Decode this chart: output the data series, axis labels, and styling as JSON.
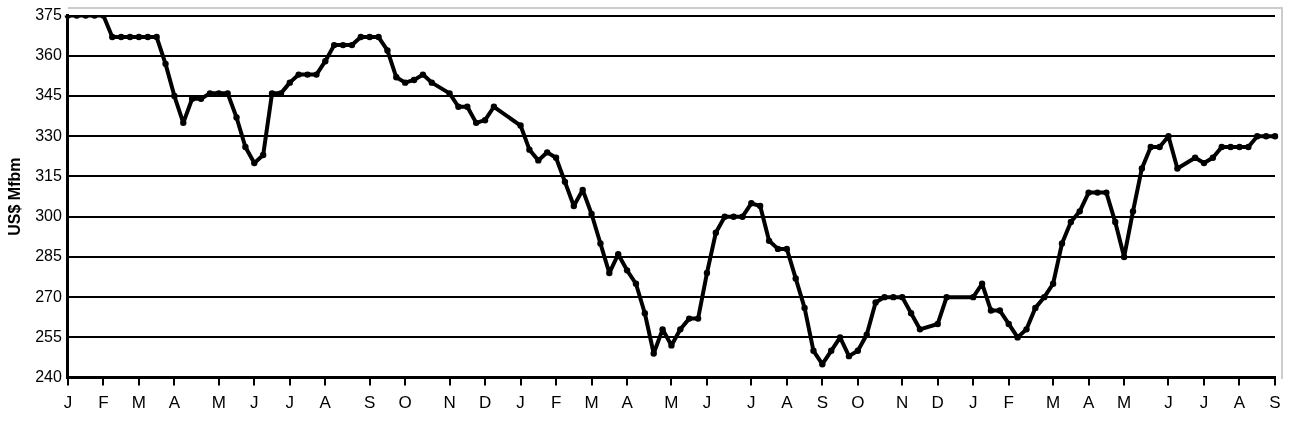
{
  "chart_data": {
    "type": "line",
    "ylabel": "US$ Mfbm",
    "color": "#000000",
    "marker": "circle",
    "line_style": "solid",
    "grid": "y",
    "legend": false,
    "categories": [
      "J",
      null,
      null,
      null,
      "F",
      null,
      null,
      null,
      "M",
      null,
      null,
      null,
      "A",
      null,
      null,
      null,
      null,
      "M",
      null,
      null,
      null,
      "J",
      null,
      null,
      null,
      "J",
      null,
      null,
      null,
      "A",
      null,
      null,
      null,
      null,
      "S",
      null,
      null,
      null,
      "O",
      null,
      null,
      null,
      null,
      "N",
      null,
      null,
      null,
      "D",
      null,
      null,
      null,
      "J",
      null,
      null,
      null,
      "F",
      null,
      null,
      null,
      "M",
      null,
      null,
      null,
      "A",
      null,
      null,
      null,
      null,
      "M",
      null,
      null,
      null,
      "J",
      null,
      null,
      null,
      null,
      "J",
      null,
      null,
      null,
      "A",
      null,
      null,
      null,
      "S",
      null,
      null,
      null,
      "O",
      null,
      null,
      null,
      null,
      "N",
      null,
      null,
      null,
      "D",
      null,
      null,
      null,
      "J",
      null,
      null,
      null,
      "F",
      null,
      null,
      null,
      null,
      "M",
      null,
      null,
      null,
      "A",
      null,
      null,
      null,
      "M",
      null,
      null,
      null,
      null,
      "J",
      null,
      null,
      null,
      "J",
      null,
      null,
      null,
      "A",
      null,
      null,
      null,
      "S"
    ],
    "values": [
      375,
      375,
      375,
      375,
      375,
      367,
      367,
      367,
      367,
      367,
      367,
      357,
      345,
      335,
      344,
      344,
      346,
      346,
      346,
      337,
      326,
      320,
      323,
      346,
      346,
      350,
      353,
      353,
      353,
      358,
      364,
      364,
      364,
      367,
      367,
      367,
      362,
      352,
      350,
      351,
      353,
      350,
      null,
      346,
      341,
      341,
      335,
      336,
      341,
      null,
      null,
      334,
      325,
      321,
      324,
      322,
      313,
      304,
      310,
      301,
      290,
      279,
      286,
      280,
      275,
      264,
      249,
      258,
      252,
      258,
      262,
      262,
      279,
      294,
      300,
      300,
      300,
      305,
      304,
      291,
      288,
      288,
      277,
      266,
      250,
      245,
      250,
      255,
      248,
      250,
      256,
      268,
      270,
      270,
      270,
      264,
      258,
      null,
      260,
      270,
      null,
      null,
      270,
      275,
      265,
      265,
      260,
      255,
      258,
      266,
      270,
      275,
      290,
      298,
      302,
      309,
      309,
      309,
      298,
      285,
      302,
      318,
      326,
      326,
      330,
      318,
      null,
      322,
      320,
      322,
      326,
      326,
      326,
      326,
      330,
      330,
      330
    ],
    "ylim": [
      240,
      375
    ],
    "yticks": [
      240,
      255,
      270,
      285,
      300,
      315,
      330,
      345,
      360,
      375
    ]
  }
}
